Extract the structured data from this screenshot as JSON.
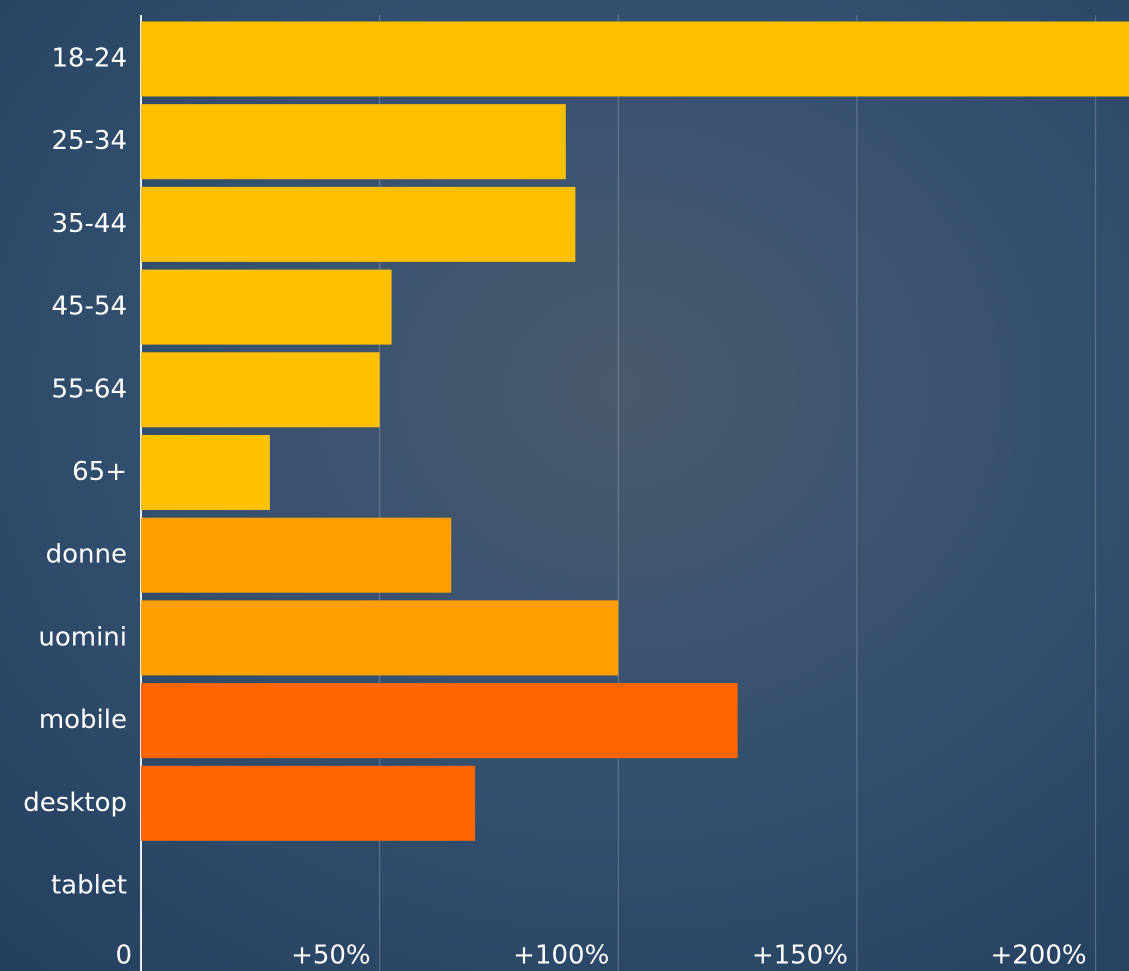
{
  "chart_data": {
    "type": "barh",
    "categories": [
      "18-24",
      "25-34",
      "35-44",
      "45-54",
      "55-64",
      "65+",
      "donne",
      "uomini",
      "mobile",
      "desktop",
      "tablet"
    ],
    "values": [
      210,
      89,
      91,
      52.5,
      50,
      27,
      65,
      100,
      125,
      70,
      0
    ],
    "colors": [
      "#ffc000",
      "#ffc000",
      "#ffc000",
      "#ffc000",
      "#ffc000",
      "#ffc000",
      "#ffa000",
      "#ffa000",
      "#ff6600",
      "#ff6600",
      "#ff6600"
    ],
    "xlim": [
      0,
      207
    ],
    "xticks": [
      0,
      {
        "value": 50,
        "label": "+50%"
      },
      {
        "value": 100,
        "label": "+100%"
      },
      {
        "value": 150,
        "label": "+150%"
      },
      {
        "value": 200,
        "label": "+200%"
      }
    ],
    "grid": true
  }
}
